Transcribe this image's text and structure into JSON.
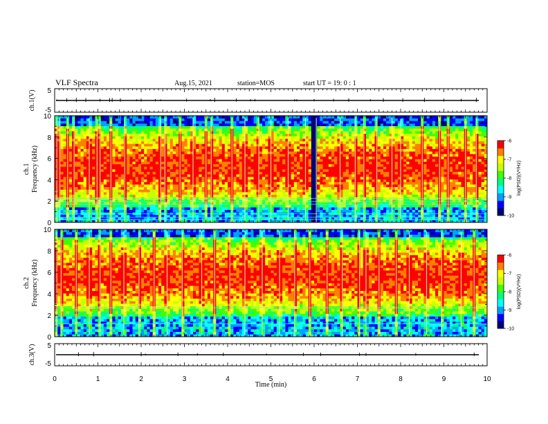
{
  "header": {
    "title": "VLF Spectra",
    "date": "Aug.15, 2021",
    "station": "station=MOS",
    "start": "start  UT =   19: 0  : 1"
  },
  "colors": {
    "background": "#ffffff",
    "axis": "#000000",
    "spectrogram_floor": "#00003a",
    "colormap": [
      "#000078",
      "#0000ff",
      "#00a0ff",
      "#00ffff",
      "#00ff80",
      "#40ff00",
      "#c8ff00",
      "#ffff00",
      "#ff8000",
      "#ff0000",
      "#ffffff"
    ]
  },
  "chart_data": [
    {
      "type": "line",
      "name": "ch1-waveform",
      "ylabel": "ch.1(V)",
      "ylim": [
        -5,
        5
      ],
      "yticks": [
        "5",
        "-5"
      ],
      "xlim": [
        0,
        10
      ],
      "trace_level": 0,
      "spike_times": [
        0.05,
        0.28,
        0.5,
        0.72,
        1.05,
        1.27,
        1.33,
        1.52,
        1.9,
        2.0,
        2.33,
        2.45,
        3.05,
        3.6,
        3.7,
        4.2,
        4.53,
        4.63,
        5.55,
        5.6,
        6.0,
        6.45,
        6.8,
        7.3,
        7.6,
        8.05,
        8.55,
        9.0,
        9.4,
        9.75
      ]
    },
    {
      "type": "heatmap",
      "name": "ch1-spectrogram",
      "ylabel_lines": [
        "ch.1",
        "Frequency (kHz)"
      ],
      "xlim": [
        0,
        10
      ],
      "ylim": [
        0,
        10
      ],
      "yticks": [
        "0",
        "2",
        "4",
        "6",
        "8",
        "10"
      ],
      "colorbar": {
        "label": "log(PSD)(V²/Hz)",
        "range": [
          -10,
          -6
        ],
        "ticks": [
          "-6",
          "-7",
          "-8",
          "-9",
          "-10"
        ]
      },
      "horizontal_lines_khz": [
        0.3,
        0.5,
        0.8,
        1.7,
        1.95,
        2.25
      ],
      "sferic_times": [
        0.05,
        0.12,
        0.3,
        0.45,
        0.8,
        0.98,
        1.05,
        1.3,
        1.62,
        2.45,
        2.55,
        2.9,
        3.2,
        3.5,
        3.62,
        4.1,
        4.4,
        4.72,
        5.0,
        5.4,
        5.8,
        6.05,
        6.6,
        6.95,
        7.15,
        7.45,
        7.8,
        8.0,
        8.5,
        8.9,
        9.1,
        9.5,
        9.75
      ],
      "band_khz": [
        1.5,
        9.0
      ],
      "dropout_times": [
        5.95,
        6.0,
        6.05
      ]
    },
    {
      "type": "heatmap",
      "name": "ch2-spectrogram",
      "ylabel_lines": [
        "ch.2",
        "Frequency (kHz)"
      ],
      "xlim": [
        0,
        10
      ],
      "ylim": [
        0,
        10
      ],
      "yticks": [
        "0",
        "2",
        "4",
        "6",
        "8",
        "10"
      ],
      "colorbar": {
        "label": "log(PSD)(V²/Hz)",
        "range": [
          -10,
          -6
        ],
        "ticks": [
          "-6",
          "-7",
          "-8",
          "-9",
          "-10"
        ]
      },
      "horizontal_lines_khz": [
        1.2,
        2.7
      ],
      "sferic_times": [
        0.05,
        0.15,
        0.5,
        0.8,
        1.05,
        1.3,
        1.6,
        1.95,
        2.3,
        2.6,
        2.95,
        3.4,
        3.7,
        4.05,
        4.4,
        4.8,
        5.2,
        5.55,
        5.9,
        6.3,
        6.65,
        7.05,
        7.2,
        7.5,
        7.9,
        8.2,
        8.6,
        8.95,
        9.4,
        9.7
      ],
      "band_khz": [
        2.0,
        9.3
      ],
      "dropout_times": []
    },
    {
      "type": "line",
      "name": "ch3-waveform",
      "ylabel": "ch.3(V)",
      "ylim": [
        -5,
        5
      ],
      "yticks": [
        "5",
        "-5"
      ],
      "xlim": [
        0,
        10
      ],
      "xlabel": "Time  (min)",
      "xticks": [
        "0",
        "1",
        "2",
        "3",
        "4",
        "5",
        "6",
        "7",
        "8",
        "9",
        "10"
      ],
      "trace_level": 0,
      "spike_times": [
        0.55,
        0.9,
        2.0,
        2.1,
        2.85,
        3.3,
        3.9,
        4.9,
        5.75,
        6.15,
        7.05,
        7.2,
        8.35,
        9.7
      ]
    }
  ]
}
